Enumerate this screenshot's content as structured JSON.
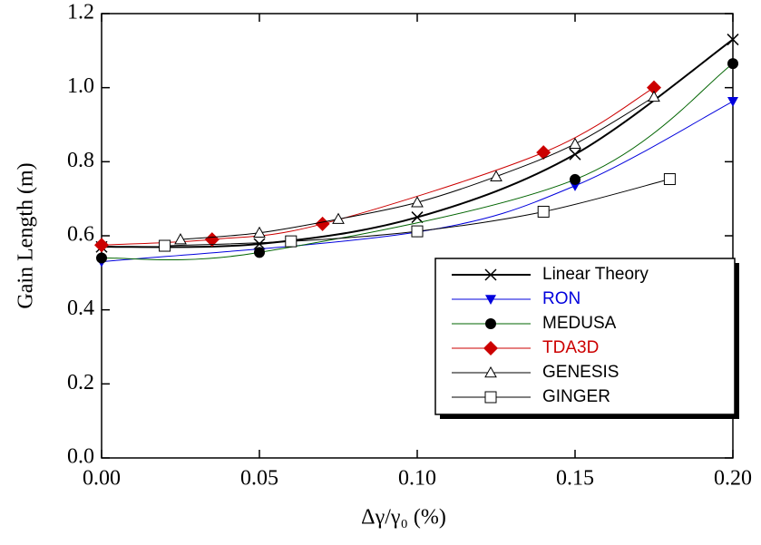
{
  "chart_data": {
    "type": "line",
    "x_label": "Δγ/γ₀ (%)",
    "y_label": "Gain Length (m)",
    "xlim": [
      0,
      0.2
    ],
    "ylim": [
      0,
      1.2
    ],
    "xticks": [
      {
        "value": 0,
        "label": "0.00"
      },
      0.05,
      {
        "value": 0.1,
        "label": "0.10"
      },
      0.15,
      {
        "value": 0.2,
        "label": "0.20"
      }
    ],
    "yticks": [
      {
        "value": 0,
        "label": "0.0"
      },
      0.2,
      0.4,
      0.6,
      0.8,
      {
        "value": 1,
        "label": "1.0"
      },
      1.2
    ],
    "series": [
      {
        "name": "Linear Theory",
        "color": "#000000",
        "text_color": "#000000",
        "marker": "x",
        "line_width": 2,
        "x": [
          0,
          0.05,
          0.1,
          0.15,
          0.2
        ],
        "values": [
          0.57,
          0.578,
          0.65,
          0.82,
          1.13
        ]
      },
      {
        "name": "RON",
        "color": "#0000dd",
        "text_color": "#0000dd",
        "marker": "triangle-down",
        "line_width": 1,
        "x": [
          0,
          0.1,
          0.15,
          0.2
        ],
        "values": [
          0.53,
          0.61,
          0.735,
          0.963
        ]
      },
      {
        "name": "MEDUSA",
        "color": "#006400",
        "text_color": "#000000",
        "marker": "circle",
        "line_width": 1,
        "x": [
          0,
          0.05,
          0.15,
          0.2
        ],
        "values": [
          0.54,
          0.555,
          0.752,
          1.065
        ]
      },
      {
        "name": "TDA3D",
        "color": "#cc0000",
        "text_color": "#cc0000",
        "marker": "diamond",
        "line_width": 1,
        "x": [
          0,
          0.035,
          0.07,
          0.14,
          0.175
        ],
        "values": [
          0.575,
          0.59,
          0.632,
          0.825,
          1.0
        ]
      },
      {
        "name": "GENESIS",
        "color": "#000000",
        "text_color": "#000000",
        "marker": "triangle-open",
        "line_width": 1,
        "x": [
          0.025,
          0.05,
          0.075,
          0.1,
          0.125,
          0.15,
          0.175
        ],
        "values": [
          0.59,
          0.608,
          0.645,
          0.69,
          0.76,
          0.848,
          0.975
        ]
      },
      {
        "name": "GINGER",
        "color": "#000000",
        "text_color": "#000000",
        "marker": "square-open",
        "line_width": 1,
        "x": [
          0.02,
          0.06,
          0.1,
          0.14,
          0.18
        ],
        "values": [
          0.573,
          0.585,
          0.612,
          0.665,
          0.753
        ]
      }
    ]
  }
}
